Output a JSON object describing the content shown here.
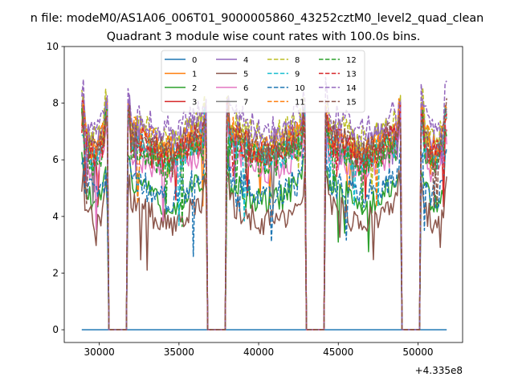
{
  "figure": {
    "suptitle": "n file: modeM0/AS1A06_006T01_9000005860_43252cztM0_level2_quad_clean",
    "title": "Quadrant 3 module wise count rates with 100.0s bins.",
    "offset_label": "+4.335e8"
  },
  "chart_data": {
    "type": "line",
    "title": "Quadrant 3 module wise count rates with 100.0s bins.",
    "xlabel": "",
    "ylabel": "",
    "x_offset": 433500000,
    "xlim": [
      27800,
      52800
    ],
    "ylim": [
      -0.45,
      10
    ],
    "xticks": [
      30000,
      35000,
      40000,
      45000,
      50000
    ],
    "xtick_labels": [
      "30000",
      "35000",
      "40000",
      "45000",
      "50000"
    ],
    "yticks": [
      0,
      2,
      4,
      6,
      8,
      10
    ],
    "ytick_labels": [
      "0",
      "2",
      "4",
      "6",
      "8",
      "10"
    ],
    "grid": false,
    "legend_position": "top-center",
    "legend_columns": 4,
    "good_time_intervals": [
      [
        28900,
        30500
      ],
      [
        31800,
        36700
      ],
      [
        38000,
        42900
      ],
      [
        44200,
        48900
      ],
      [
        50200,
        51800
      ]
    ],
    "x_range": [
      28900,
      51800
    ],
    "series": [
      {
        "name": "0",
        "color": "#1f77b4",
        "dash": "solid",
        "level": 0.0
      },
      {
        "name": "1",
        "color": "#ff7f0e",
        "dash": "solid",
        "level": 6.5
      },
      {
        "name": "2",
        "color": "#2ca02c",
        "dash": "solid",
        "level": 4.8
      },
      {
        "name": "3",
        "color": "#d62728",
        "dash": "solid",
        "level": 6.3
      },
      {
        "name": "4",
        "color": "#9467bd",
        "dash": "solid",
        "level": 6.9
      },
      {
        "name": "5",
        "color": "#8c564b",
        "dash": "solid",
        "level": 4.1
      },
      {
        "name": "6",
        "color": "#e377c2",
        "dash": "solid",
        "level": 5.9
      },
      {
        "name": "7",
        "color": "#7f7f7f",
        "dash": "solid",
        "level": 6.4
      },
      {
        "name": "8",
        "color": "#bcbd22",
        "dash": "dashed",
        "level": 7.0
      },
      {
        "name": "9",
        "color": "#17becf",
        "dash": "dashed",
        "level": 6.3
      },
      {
        "name": "10",
        "color": "#1f77b4",
        "dash": "dashed",
        "level": 5.0
      },
      {
        "name": "11",
        "color": "#ff7f0e",
        "dash": "dashed",
        "level": 6.7
      },
      {
        "name": "12",
        "color": "#2ca02c",
        "dash": "dashed",
        "level": 6.2
      },
      {
        "name": "13",
        "color": "#d62728",
        "dash": "dashed",
        "level": 6.5
      },
      {
        "name": "14",
        "color": "#9467bd",
        "dash": "dashed",
        "level": 7.3
      },
      {
        "name": "15",
        "color": "#8c564b",
        "dash": "dashed",
        "level": 6.6
      }
    ]
  }
}
